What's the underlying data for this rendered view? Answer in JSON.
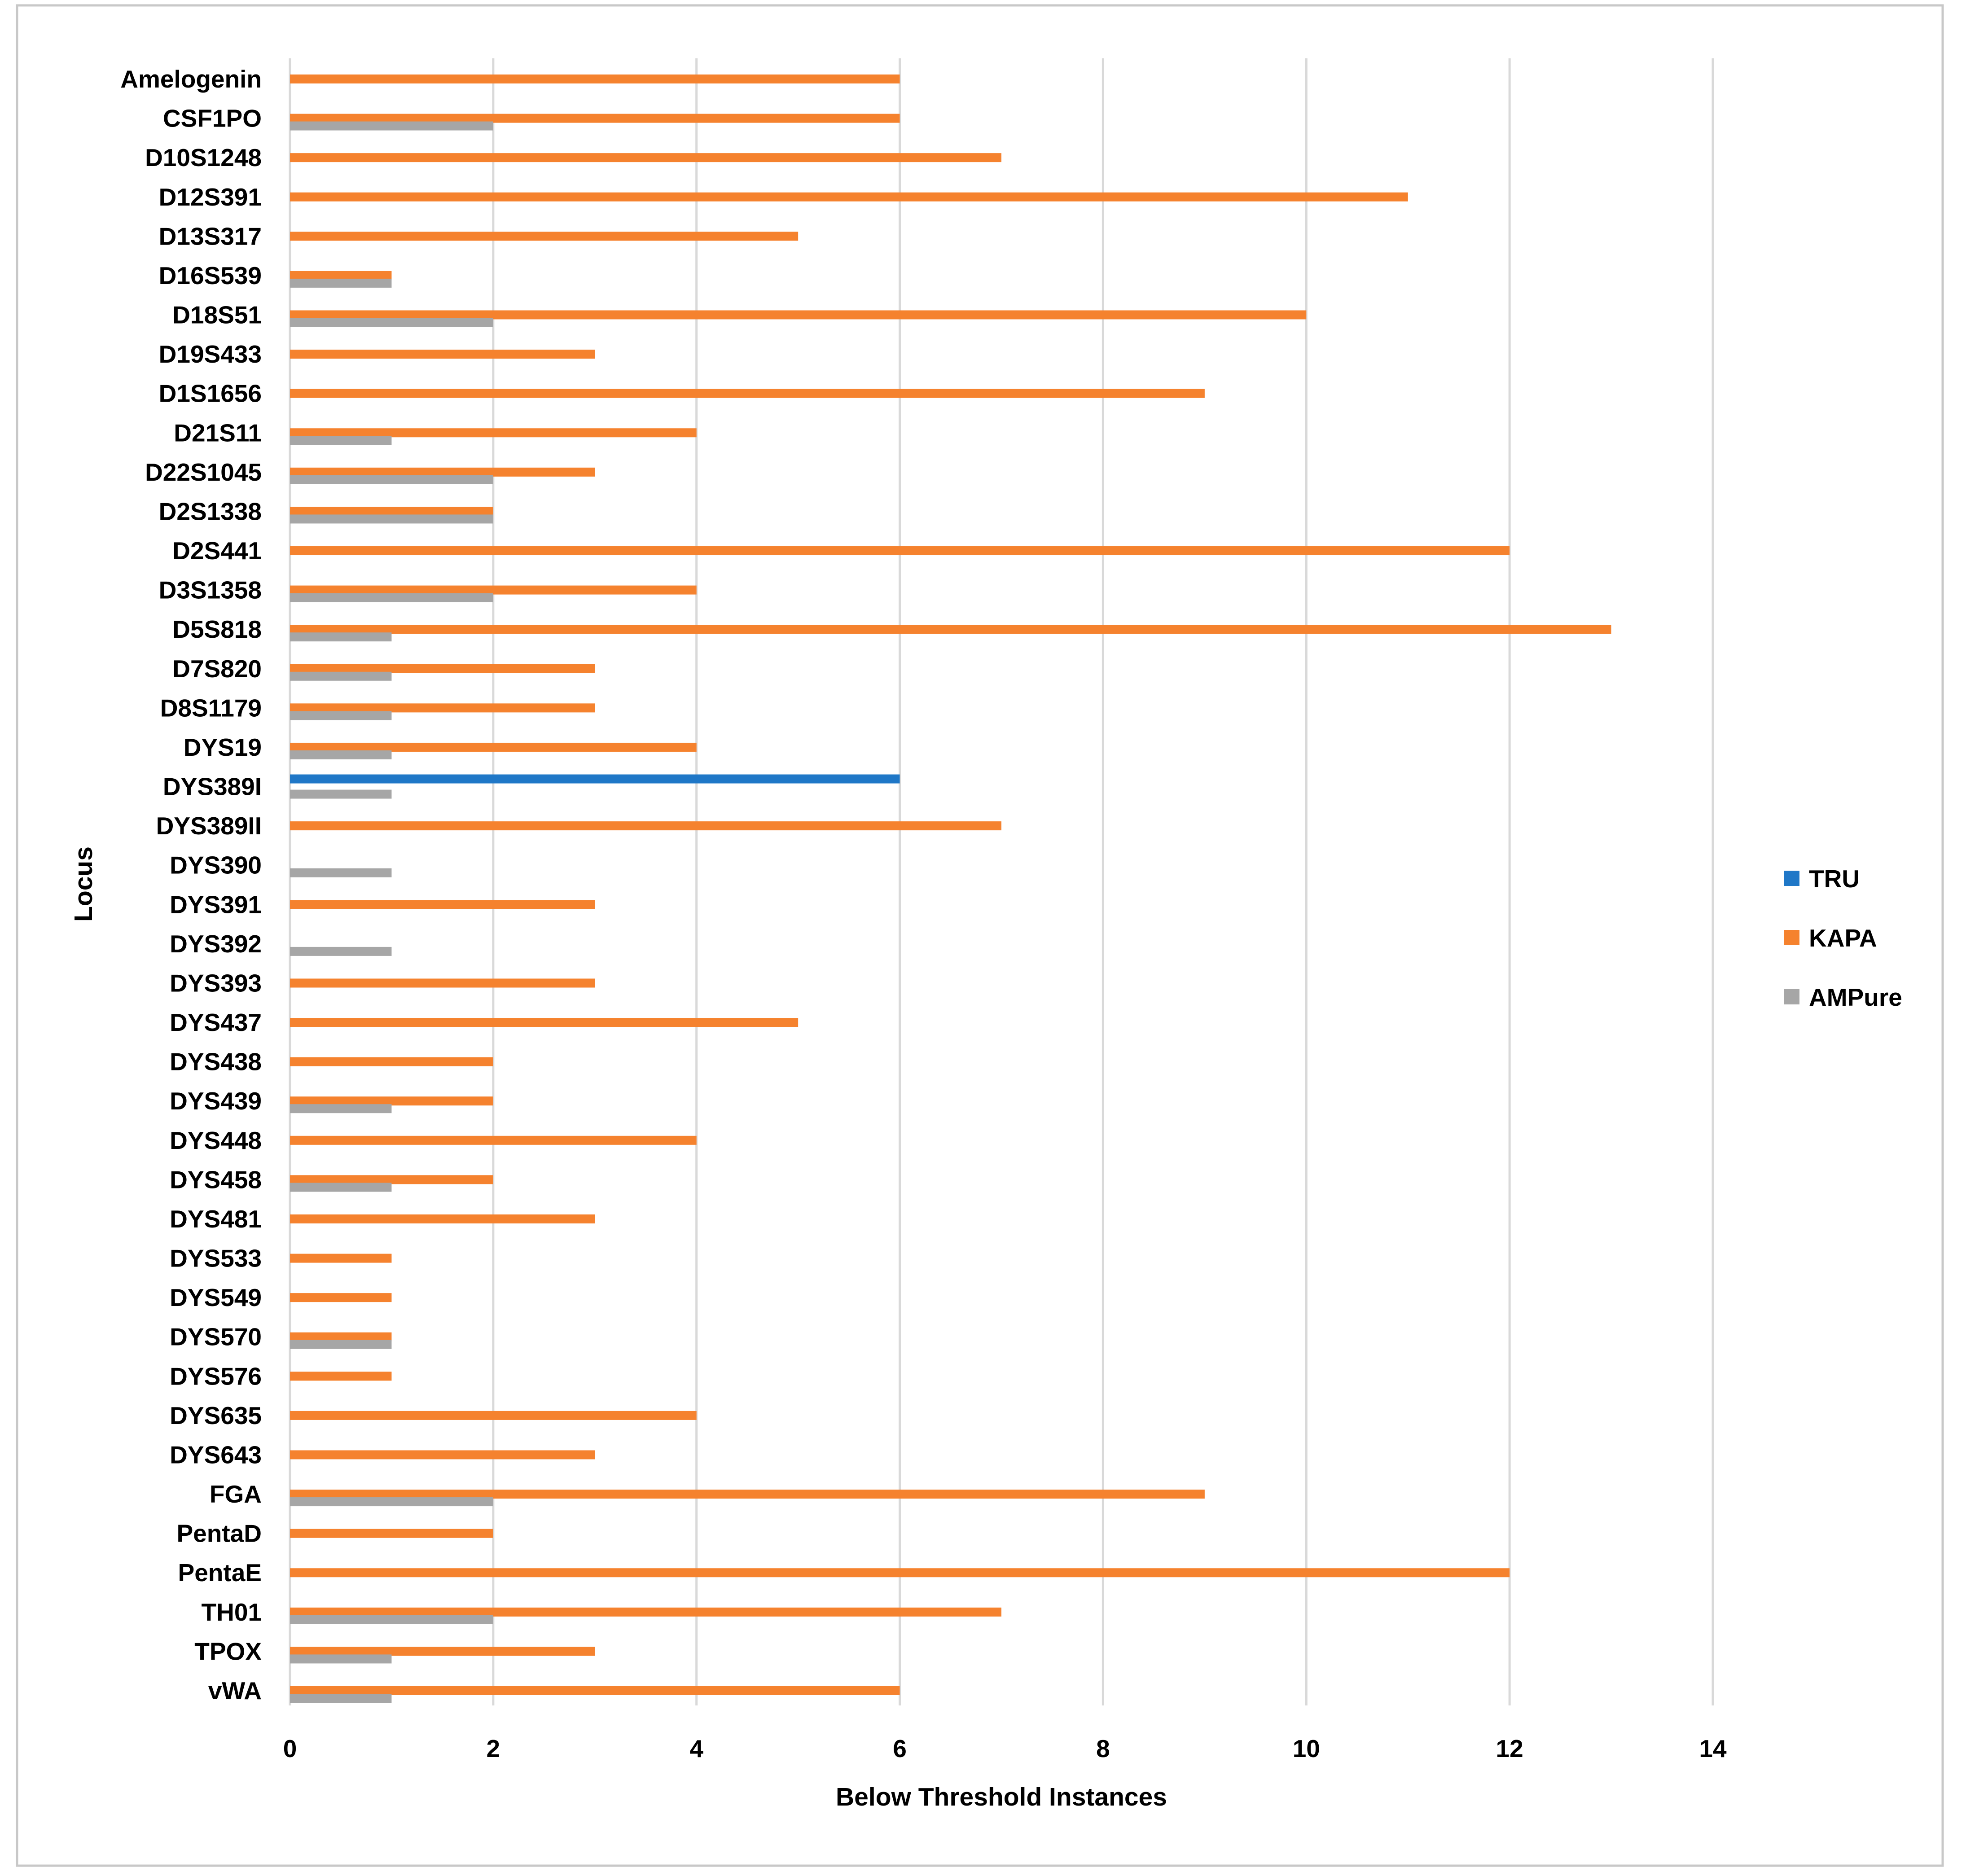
{
  "chart_data": {
    "type": "bar",
    "orientation": "horizontal",
    "title": "",
    "xlabel": "Below Threshold Instances",
    "ylabel": "Locus",
    "xlim": [
      0,
      14
    ],
    "xticks": [
      0,
      2,
      4,
      6,
      8,
      10,
      12,
      14
    ],
    "grid": true,
    "legend_position": "right",
    "categories": [
      "Amelogenin",
      "CSF1PO",
      "D10S1248",
      "D12S391",
      "D13S317",
      "D16S539",
      "D18S51",
      "D19S433",
      "D1S1656",
      "D21S11",
      "D22S1045",
      "D2S1338",
      "D2S441",
      "D3S1358",
      "D5S818",
      "D7S820",
      "D8S1179",
      "DYS19",
      "DYS389I",
      "DYS389II",
      "DYS390",
      "DYS391",
      "DYS392",
      "DYS393",
      "DYS437",
      "DYS438",
      "DYS439",
      "DYS448",
      "DYS458",
      "DYS481",
      "DYS533",
      "DYS549",
      "DYS570",
      "DYS576",
      "DYS635",
      "DYS643",
      "FGA",
      "PentaD",
      "PentaE",
      "TH01",
      "TPOX",
      "vWA"
    ],
    "series": [
      {
        "name": "TRU",
        "color": "#1f77c7",
        "values": [
          0,
          0,
          0,
          0,
          0,
          0,
          0,
          0,
          0,
          0,
          0,
          0,
          0,
          0,
          0,
          0,
          0,
          0,
          6,
          0,
          0,
          0,
          0,
          0,
          0,
          0,
          0,
          0,
          0,
          0,
          0,
          0,
          0,
          0,
          0,
          0,
          0,
          0,
          0,
          0,
          0,
          0
        ]
      },
      {
        "name": "KAPA",
        "color": "#f5822e",
        "values": [
          6,
          6,
          7,
          11,
          5,
          1,
          10,
          3,
          9,
          4,
          3,
          2,
          12,
          4,
          13,
          3,
          3,
          4,
          0,
          7,
          0,
          3,
          0,
          3,
          5,
          2,
          2,
          4,
          2,
          3,
          1,
          1,
          1,
          1,
          4,
          3,
          9,
          2,
          12,
          7,
          3,
          6
        ]
      },
      {
        "name": "AMPure",
        "color": "#a6a6a6",
        "values": [
          0,
          2,
          0,
          0,
          0,
          1,
          2,
          0,
          0,
          1,
          2,
          2,
          0,
          2,
          1,
          1,
          1,
          1,
          1,
          0,
          1,
          0,
          1,
          0,
          0,
          0,
          1,
          0,
          1,
          0,
          0,
          0,
          1,
          0,
          0,
          0,
          2,
          0,
          0,
          2,
          1,
          1
        ]
      }
    ]
  }
}
